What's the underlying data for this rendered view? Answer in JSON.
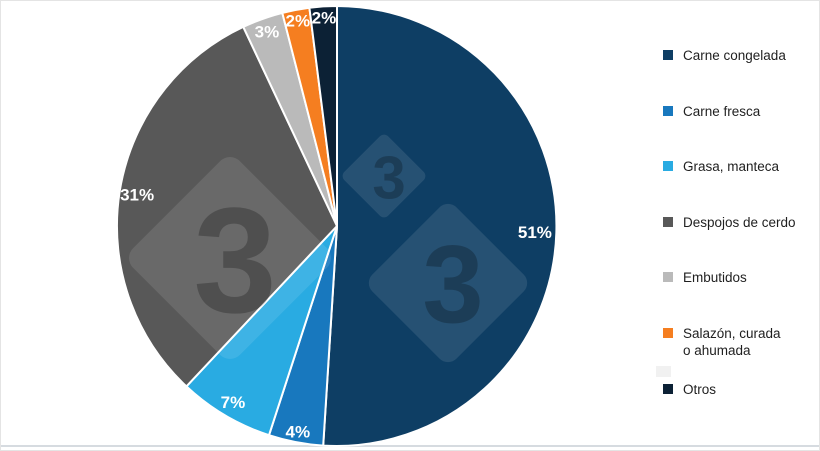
{
  "chart_data": {
    "type": "pie",
    "title": "",
    "units": "%",
    "categories": [
      "Carne congelada",
      "Carne fresca",
      "Grasa, manteca",
      "Despojos de cerdo",
      "Embutidos",
      "Salazón, curada o ahumada",
      "Otros"
    ],
    "values": [
      51,
      4,
      7,
      31,
      3,
      2,
      2
    ],
    "pct_labels": [
      "51%",
      "4%",
      "7%",
      "31%",
      "3%",
      "2%",
      "2%"
    ],
    "colors": [
      "#0e3e64",
      "#1878be",
      "#29abe2",
      "#585858",
      "#bababa",
      "#f57e20",
      "#0c2135"
    ],
    "legend_labels": [
      "Carne congelada",
      "Carne fresca",
      "Grasa, manteca",
      "Despojos de cerdo",
      "Embutidos",
      "Salazón, curada\no ahumada",
      "Otros"
    ],
    "label_radius_fractions": [
      0.9,
      0.95,
      0.93,
      0.92,
      0.94,
      0.95,
      0.95
    ],
    "start_angle_deg": 0,
    "direction": "clockwise",
    "legend_position": "right",
    "slice_border_color": "#ffffff",
    "label_text_color": "#ffffff"
  },
  "watermark": {
    "digit": "3",
    "shape": "diamond",
    "count": 3
  }
}
